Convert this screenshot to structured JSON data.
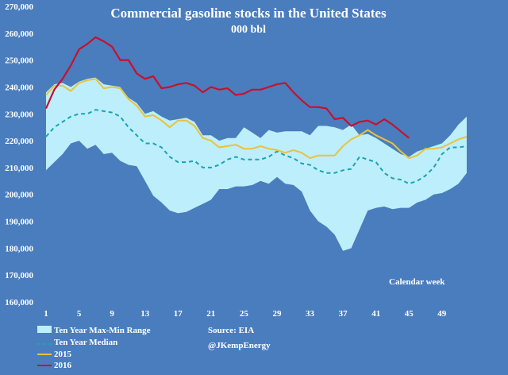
{
  "chart_data": {
    "type": "area",
    "title": "Commercial gasoline stocks in the United States",
    "subtitle": "000 bbl",
    "xlabel": "Calendar week",
    "ylabel": "",
    "xlim": [
      1,
      52
    ],
    "ylim": [
      160000,
      270000
    ],
    "x_ticks": [
      "1",
      "5",
      "9",
      "13",
      "17",
      "21",
      "25",
      "29",
      "33",
      "37",
      "41",
      "45",
      "49"
    ],
    "y_ticks": [
      "160,000",
      "170,000",
      "180,000",
      "190,000",
      "200,000",
      "210,000",
      "220,000",
      "230,000",
      "240,000",
      "250,000",
      "260,000",
      "270,000"
    ],
    "grid": false,
    "legend_position": "bottom-left",
    "source": "Source: EIA",
    "handle": "@JKempEnergy",
    "colors": {
      "background": "#4a7dbd",
      "band": "#bdeefb",
      "median": "#1aa3b5",
      "y2015": "#e8c33c",
      "y2016": "#c8102e"
    },
    "range_band": {
      "name": "Ten Year Max-Min Range",
      "max": [
        238000,
        241000,
        241500,
        240000,
        242000,
        243000,
        243500,
        241000,
        240500,
        240000,
        236000,
        234000,
        230000,
        231000,
        229000,
        227500,
        228000,
        228500,
        227000,
        222000,
        222000,
        220000,
        221000,
        221000,
        225000,
        223000,
        221000,
        224000,
        223000,
        223500,
        223500,
        223500,
        222000,
        225500,
        225500,
        225000,
        224000,
        226000,
        222000,
        222500,
        221000,
        219000,
        217000,
        215000,
        214000,
        216000,
        217000,
        218000,
        219000,
        222000,
        226000,
        229000
      ],
      "min": [
        209000,
        212000,
        215000,
        219000,
        220000,
        217000,
        218500,
        215000,
        215500,
        212500,
        211000,
        210500,
        205000,
        199500,
        197000,
        194000,
        193000,
        193500,
        195000,
        196500,
        198000,
        202000,
        202000,
        203000,
        203000,
        203500,
        205000,
        204000,
        206500,
        204000,
        203500,
        201000,
        194000,
        190000,
        188000,
        185000,
        179000,
        180000,
        187000,
        194000,
        195000,
        195500,
        194500,
        195000,
        195000,
        197000,
        198000,
        200000,
        200500,
        202000,
        204000,
        208000
      ]
    },
    "series": [
      {
        "name": "Ten Year Median",
        "values": [
          221500,
          225000,
          227000,
          229000,
          230000,
          230000,
          231500,
          231000,
          230500,
          229000,
          225000,
          222000,
          219000,
          219000,
          217500,
          214000,
          212000,
          212000,
          212500,
          210000,
          210000,
          211000,
          213000,
          214000,
          213000,
          213000,
          213000,
          214000,
          216000,
          214500,
          213500,
          211500,
          211000,
          209000,
          208000,
          208000,
          209000,
          209500,
          214000,
          213000,
          212000,
          208000,
          206000,
          205500,
          204000,
          205000,
          207000,
          210000,
          215000,
          217500,
          217500,
          218000
        ]
      },
      {
        "name": "2015",
        "values": [
          237000,
          240500,
          240500,
          238500,
          241500,
          242500,
          243000,
          239500,
          240000,
          239500,
          235500,
          233000,
          229000,
          229500,
          227500,
          225000,
          227500,
          227500,
          225500,
          221000,
          220000,
          217500,
          218000,
          218500,
          217000,
          217000,
          218000,
          217000,
          216500,
          215500,
          216500,
          215500,
          213500,
          214500,
          214500,
          214500,
          218000,
          220500,
          222000,
          224000,
          222000,
          220500,
          219000,
          216000,
          213500,
          214500,
          217000,
          217000,
          217500,
          219000,
          220500,
          221500
        ]
      },
      {
        "name": "2016",
        "values": [
          232000,
          239000,
          243000,
          248000,
          254000,
          256000,
          258500,
          257000,
          255000,
          250000,
          250000,
          245000,
          243000,
          244000,
          239500,
          240000,
          241000,
          241500,
          240500,
          238000,
          240000,
          239000,
          239500,
          237000,
          237500,
          239000,
          239000,
          240000,
          241000,
          241500,
          238000,
          235000,
          232500,
          232500,
          232000,
          228000,
          228500,
          225500,
          227000,
          227500,
          226000,
          228000,
          226000,
          223500,
          221000
        ]
      }
    ]
  }
}
